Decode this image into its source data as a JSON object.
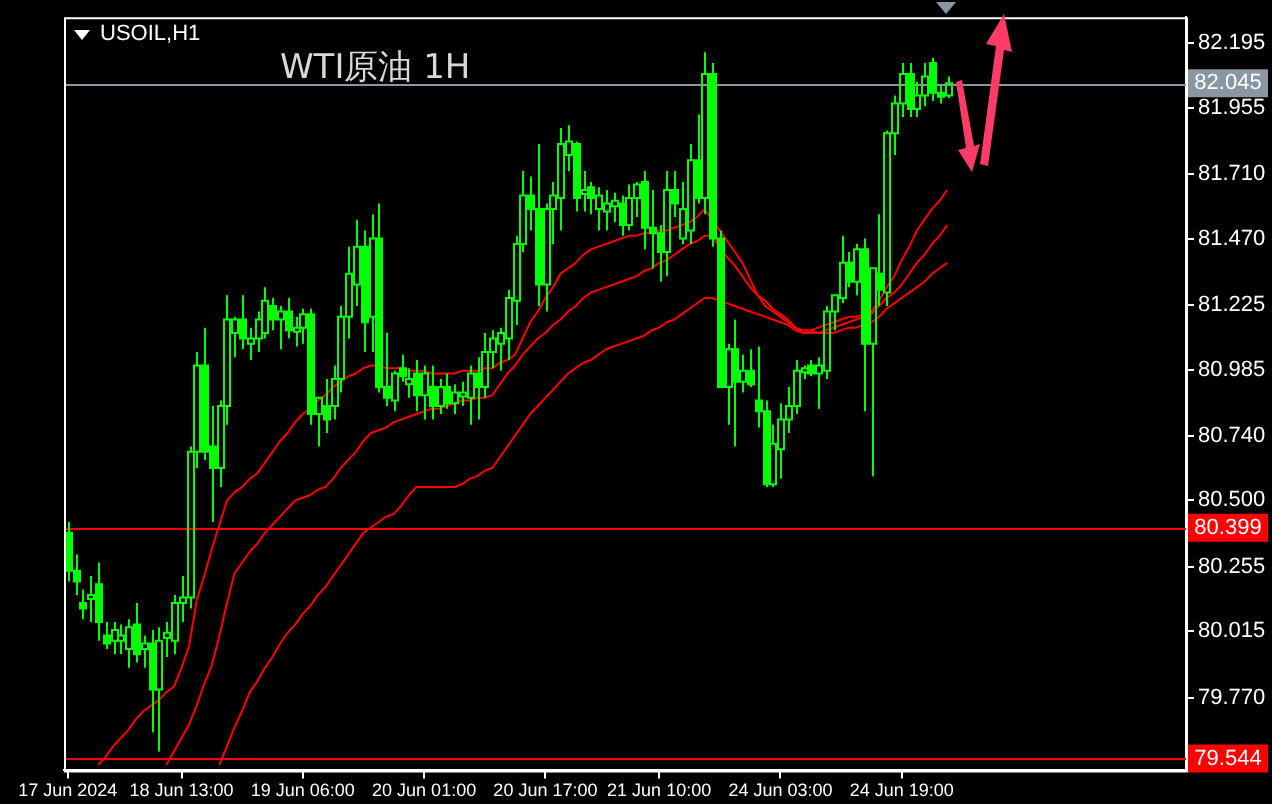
{
  "chart_data": {
    "type": "candlestick",
    "title": "WTI原油 1H",
    "subtitle": "USOIL,H1",
    "categories": [
      "17 Jun 2024",
      null,
      null,
      null,
      null,
      null,
      null,
      null,
      null,
      null,
      null,
      null,
      null,
      null,
      null,
      "18 Jun 13:00",
      null,
      null,
      null,
      null,
      null,
      null,
      null,
      null,
      null,
      null,
      null,
      null,
      null,
      null,
      null,
      "19 Jun 06:00",
      null,
      null,
      null,
      null,
      null,
      null,
      null,
      null,
      null,
      null,
      null,
      null,
      null,
      null,
      null,
      "20 Jun 01:00",
      null,
      null,
      null,
      null,
      null,
      null,
      null,
      null,
      null,
      null,
      null,
      null,
      null,
      null,
      null,
      "20 Jun 17:00",
      null,
      null,
      null,
      null,
      null,
      null,
      null,
      null,
      null,
      null,
      null,
      null,
      null,
      null,
      "21 Jun 10:00",
      null,
      null,
      null,
      null,
      null,
      null,
      null,
      null,
      null,
      null,
      null,
      null,
      null,
      null,
      null,
      "24 Jun 03:00",
      null,
      null,
      null,
      null,
      null,
      null,
      null,
      null,
      null,
      null,
      null,
      null,
      null,
      null,
      null,
      "24 Jun 19:00",
      null,
      null,
      null,
      null,
      null,
      null,
      null,
      null,
      null,
      null,
      null,
      null,
      null,
      null,
      null,
      null,
      null,
      null,
      null,
      null,
      null,
      null,
      null,
      null,
      null,
      null,
      null,
      null,
      null,
      null,
      null,
      null,
      null,
      null,
      null,
      null,
      null
    ],
    "series": [
      {
        "type": "candlestick",
        "color": "#00ff00",
        "ohlc": [
          [
            80.38,
            80.42,
            80.2,
            80.24
          ],
          [
            80.24,
            80.3,
            80.15,
            80.2
          ],
          [
            80.12,
            80.17,
            80.06,
            80.1
          ],
          [
            80.14,
            80.22,
            80.05,
            80.15
          ],
          [
            80.19,
            80.27,
            79.98,
            80.05
          ],
          [
            80.0,
            80.05,
            79.95,
            79.97
          ],
          [
            79.98,
            80.05,
            79.93,
            80.02
          ],
          [
            79.98,
            80.04,
            79.93,
            80.0
          ],
          [
            79.95,
            80.06,
            79.88,
            80.03
          ],
          [
            80.04,
            80.12,
            79.9,
            79.93
          ],
          [
            79.95,
            80.0,
            79.88,
            79.97
          ],
          [
            79.97,
            80.02,
            79.64,
            79.8
          ],
          [
            79.8,
            80.03,
            79.57,
            79.98
          ],
          [
            79.99,
            80.05,
            79.92,
            80.01
          ],
          [
            79.98,
            80.15,
            79.93,
            80.12
          ],
          [
            80.12,
            80.22,
            80.05,
            80.14
          ],
          [
            80.14,
            80.7,
            80.1,
            80.68
          ],
          [
            80.68,
            81.05,
            80.62,
            81.0
          ],
          [
            81.0,
            81.14,
            80.65,
            80.68
          ],
          [
            80.7,
            80.85,
            80.42,
            80.62
          ],
          [
            80.62,
            80.87,
            80.55,
            80.85
          ],
          [
            80.85,
            81.26,
            80.78,
            81.17
          ],
          [
            81.12,
            81.18,
            81.03,
            81.17
          ],
          [
            81.17,
            81.26,
            81.06,
            81.1
          ],
          [
            81.08,
            81.14,
            81.02,
            81.1
          ],
          [
            81.1,
            81.2,
            81.05,
            81.17
          ],
          [
            81.12,
            81.29,
            81.1,
            81.24
          ],
          [
            81.22,
            81.25,
            81.13,
            81.17
          ],
          [
            81.17,
            81.22,
            81.06,
            81.2
          ],
          [
            81.2,
            81.25,
            81.1,
            81.13
          ],
          [
            81.13,
            81.18,
            81.07,
            81.14
          ],
          [
            81.14,
            81.21,
            81.08,
            81.19
          ],
          [
            81.19,
            81.21,
            80.78,
            80.82
          ],
          [
            80.82,
            80.88,
            80.7,
            80.88
          ],
          [
            80.85,
            80.95,
            80.75,
            80.8
          ],
          [
            80.85,
            81.0,
            80.8,
            80.95
          ],
          [
            80.95,
            81.22,
            80.9,
            81.18
          ],
          [
            81.18,
            81.44,
            81.1,
            81.34
          ],
          [
            81.3,
            81.54,
            81.22,
            81.44
          ],
          [
            81.44,
            81.5,
            81.05,
            81.16
          ],
          [
            81.18,
            81.56,
            81.05,
            81.47
          ],
          [
            81.47,
            81.6,
            80.9,
            80.92
          ],
          [
            80.92,
            81.12,
            80.85,
            80.88
          ],
          [
            80.87,
            80.98,
            80.83,
            80.97
          ],
          [
            80.99,
            81.04,
            80.94,
            80.96
          ],
          [
            80.93,
            80.99,
            80.88,
            80.95
          ],
          [
            80.97,
            81.02,
            80.83,
            80.89
          ],
          [
            80.89,
            81.0,
            80.8,
            80.97
          ],
          [
            80.92,
            81.0,
            80.8,
            80.85
          ],
          [
            80.85,
            80.95,
            80.82,
            80.92
          ],
          [
            80.92,
            80.97,
            80.84,
            80.86
          ],
          [
            80.86,
            80.93,
            80.82,
            80.9
          ],
          [
            80.89,
            80.94,
            80.85,
            80.9
          ],
          [
            80.88,
            81.0,
            80.78,
            80.97
          ],
          [
            80.97,
            81.03,
            80.8,
            80.92
          ],
          [
            80.92,
            81.12,
            80.88,
            81.05
          ],
          [
            81.05,
            81.13,
            80.99,
            81.1
          ],
          [
            81.08,
            81.14,
            80.98,
            81.12
          ],
          [
            81.1,
            81.28,
            81.02,
            81.25
          ],
          [
            81.24,
            81.48,
            81.15,
            81.45
          ],
          [
            81.45,
            81.72,
            81.42,
            81.63
          ],
          [
            81.63,
            81.7,
            81.5,
            81.58
          ],
          [
            81.58,
            81.82,
            81.22,
            81.3
          ],
          [
            81.3,
            81.6,
            81.2,
            81.58
          ],
          [
            81.58,
            81.68,
            81.45,
            81.63
          ],
          [
            81.62,
            81.88,
            81.5,
            81.82
          ],
          [
            81.78,
            81.89,
            81.72,
            81.83
          ],
          [
            81.82,
            81.83,
            81.57,
            81.62
          ],
          [
            81.64,
            81.72,
            81.57,
            81.65
          ],
          [
            81.66,
            81.68,
            81.56,
            81.62
          ],
          [
            81.58,
            81.66,
            81.5,
            81.63
          ],
          [
            81.57,
            81.65,
            81.5,
            81.6
          ],
          [
            81.59,
            81.64,
            81.53,
            81.61
          ],
          [
            81.6,
            81.63,
            81.48,
            81.52
          ],
          [
            81.52,
            81.67,
            81.5,
            81.62
          ],
          [
            81.62,
            81.68,
            81.55,
            81.67
          ],
          [
            81.68,
            81.72,
            81.43,
            81.51
          ],
          [
            81.51,
            81.65,
            81.36,
            81.49
          ],
          [
            81.49,
            81.52,
            81.31,
            81.42
          ],
          [
            81.42,
            81.72,
            81.33,
            81.65
          ],
          [
            81.65,
            81.72,
            81.55,
            81.6
          ],
          [
            81.47,
            81.68,
            81.45,
            81.58
          ],
          [
            81.5,
            81.82,
            81.45,
            81.76
          ],
          [
            81.76,
            81.93,
            81.6,
            81.62
          ],
          [
            81.62,
            82.16,
            81.56,
            82.08
          ],
          [
            82.08,
            82.12,
            81.44,
            81.47
          ],
          [
            81.47,
            81.5,
            80.92,
            80.92
          ],
          [
            80.92,
            81.08,
            80.78,
            81.06
          ],
          [
            81.06,
            81.17,
            80.7,
            80.94
          ],
          [
            80.94,
            81.04,
            80.9,
            80.98
          ],
          [
            80.98,
            81.06,
            80.92,
            80.93
          ],
          [
            80.87,
            81.07,
            80.77,
            80.83
          ],
          [
            80.83,
            80.87,
            80.55,
            80.56
          ],
          [
            80.56,
            80.78,
            80.55,
            80.71
          ],
          [
            80.69,
            80.86,
            80.58,
            80.8
          ],
          [
            80.8,
            80.92,
            80.75,
            80.85
          ],
          [
            80.85,
            81.02,
            80.82,
            80.98
          ],
          [
            80.98,
            81.0,
            80.95,
            80.99
          ],
          [
            81.0,
            81.02,
            80.96,
            80.97
          ],
          [
            80.97,
            81.03,
            80.84,
            81.0
          ],
          [
            80.98,
            81.22,
            80.95,
            81.2
          ],
          [
            81.2,
            81.26,
            81.13,
            81.26
          ],
          [
            81.25,
            81.48,
            81.23,
            81.38
          ],
          [
            81.38,
            81.42,
            81.29,
            81.31
          ],
          [
            81.31,
            81.45,
            81.26,
            81.43
          ],
          [
            81.43,
            81.47,
            80.83,
            81.08
          ],
          [
            81.08,
            81.36,
            80.59,
            81.36
          ],
          [
            81.34,
            81.56,
            81.22,
            81.28
          ],
          [
            81.27,
            81.87,
            81.22,
            81.86
          ],
          [
            81.86,
            82.0,
            81.78,
            81.97
          ],
          [
            81.97,
            82.12,
            81.92,
            82.08
          ],
          [
            82.08,
            82.12,
            81.92,
            81.95
          ],
          [
            81.95,
            82.05,
            81.92,
            82.0
          ],
          [
            82.0,
            82.12,
            81.96,
            82.07
          ],
          [
            82.12,
            82.14,
            81.98,
            82.01
          ],
          [
            82.01,
            82.04,
            81.97,
            82.0
          ],
          [
            82.0,
            82.07,
            81.99,
            82.045
          ],
          null,
          null,
          null,
          null,
          null,
          null,
          null,
          null,
          null,
          null,
          null,
          null,
          null,
          null,
          null,
          null,
          null,
          null,
          null,
          null,
          null,
          null,
          null,
          null,
          null,
          null,
          null,
          null,
          null,
          null,
          null
        ]
      },
      {
        "type": "line",
        "color": "#ff0000",
        "values": [
          null,
          null,
          null,
          null,
          79.52,
          79.55,
          79.59,
          79.62,
          79.65,
          79.69,
          79.72,
          79.74,
          79.76,
          79.79,
          79.81,
          79.88,
          79.96,
          80.13,
          80.22,
          80.32,
          80.41,
          80.5,
          80.53,
          80.55,
          80.58,
          80.6,
          80.64,
          80.68,
          80.72,
          80.75,
          80.79,
          80.82,
          80.84,
          80.87,
          80.89,
          80.92,
          80.94,
          80.96,
          80.97,
          80.99,
          81.0,
          81.0,
          80.99,
          80.99,
          80.99,
          80.98,
          80.98,
          80.98,
          80.97,
          80.97,
          80.97,
          80.97,
          80.98,
          80.98,
          80.98,
          80.99,
          80.99,
          81.01,
          81.02,
          81.04,
          81.1,
          81.16,
          81.2,
          81.25,
          81.29,
          81.34,
          81.36,
          81.38,
          81.41,
          81.43,
          81.44,
          81.45,
          81.46,
          81.47,
          81.48,
          81.48,
          81.49,
          81.49,
          81.5,
          81.5,
          81.51,
          81.52,
          81.53,
          81.55,
          81.58,
          81.54,
          81.5,
          81.46,
          81.42,
          81.38,
          81.32,
          81.26,
          81.24,
          81.21,
          81.19,
          81.17,
          81.14,
          81.12,
          81.13,
          81.14,
          81.15,
          81.16,
          81.17,
          81.18,
          81.18,
          81.19,
          81.2,
          81.24,
          81.29,
          81.33,
          81.39,
          81.44,
          81.5,
          81.54,
          81.58,
          81.61,
          81.65,
          null,
          null,
          null,
          null,
          null,
          null,
          null,
          null,
          null,
          null,
          null,
          null,
          null,
          null,
          null,
          null,
          null,
          null,
          null,
          null,
          null,
          null,
          null,
          null,
          null,
          null,
          null,
          null,
          null,
          null,
          null
        ]
      },
      {
        "type": "line",
        "color": "#ff0000",
        "values": [
          null,
          null,
          null,
          null,
          null,
          null,
          null,
          null,
          null,
          null,
          null,
          null,
          null,
          79.52,
          79.57,
          79.62,
          79.67,
          79.74,
          79.82,
          79.89,
          80.0,
          80.12,
          80.23,
          80.27,
          80.31,
          80.34,
          80.38,
          80.41,
          80.44,
          80.47,
          80.5,
          80.51,
          80.52,
          80.54,
          80.55,
          80.58,
          80.62,
          80.65,
          80.68,
          80.72,
          80.75,
          80.76,
          80.77,
          80.79,
          80.8,
          80.81,
          80.82,
          80.83,
          80.84,
          80.84,
          80.85,
          80.86,
          80.87,
          80.87,
          80.88,
          80.88,
          80.89,
          80.93,
          80.97,
          81.0,
          81.04,
          81.07,
          81.1,
          81.12,
          81.15,
          81.17,
          81.2,
          81.22,
          81.25,
          81.27,
          81.28,
          81.29,
          81.3,
          81.31,
          81.32,
          81.33,
          81.35,
          81.36,
          81.38,
          81.39,
          81.41,
          81.43,
          81.45,
          81.46,
          81.48,
          81.48,
          81.44,
          81.4,
          81.37,
          81.33,
          81.29,
          81.26,
          81.22,
          81.2,
          81.18,
          81.16,
          81.14,
          81.13,
          81.13,
          81.12,
          81.13,
          81.14,
          81.15,
          81.16,
          81.17,
          81.18,
          81.19,
          81.22,
          81.25,
          81.27,
          81.3,
          81.34,
          81.38,
          81.41,
          81.45,
          81.48,
          81.52,
          null,
          null,
          null,
          null,
          null,
          null,
          null,
          null,
          null,
          null,
          null,
          null,
          null,
          null,
          null,
          null,
          null,
          null,
          null,
          null,
          null,
          null,
          null,
          null,
          null,
          null,
          null,
          null,
          null,
          null,
          null
        ]
      },
      {
        "type": "line",
        "color": "#ff0000",
        "values": [
          null,
          null,
          null,
          null,
          null,
          null,
          null,
          null,
          null,
          null,
          null,
          null,
          null,
          null,
          null,
          null,
          null,
          null,
          null,
          null,
          79.52,
          79.59,
          79.66,
          79.72,
          79.79,
          79.83,
          79.88,
          79.92,
          79.97,
          80.01,
          80.04,
          80.08,
          80.11,
          80.15,
          80.18,
          80.22,
          80.26,
          80.3,
          80.34,
          80.38,
          80.4,
          80.42,
          80.44,
          80.45,
          80.48,
          80.52,
          80.55,
          80.55,
          80.55,
          80.55,
          80.55,
          80.55,
          80.56,
          80.58,
          80.59,
          80.61,
          80.62,
          80.66,
          80.7,
          80.74,
          80.78,
          80.82,
          80.85,
          80.88,
          80.91,
          80.94,
          80.97,
          80.99,
          81.01,
          81.02,
          81.04,
          81.06,
          81.07,
          81.08,
          81.09,
          81.1,
          81.11,
          81.13,
          81.14,
          81.16,
          81.17,
          81.19,
          81.21,
          81.23,
          81.25,
          81.25,
          81.24,
          81.23,
          81.22,
          81.21,
          81.2,
          81.19,
          81.18,
          81.17,
          81.16,
          81.15,
          81.13,
          81.12,
          81.12,
          81.12,
          81.12,
          81.12,
          81.13,
          81.14,
          81.14,
          81.15,
          81.16,
          81.18,
          81.21,
          81.23,
          81.25,
          81.27,
          81.29,
          81.31,
          81.34,
          81.36,
          81.38,
          null,
          null,
          null,
          null,
          null,
          null,
          null,
          null,
          null,
          null,
          null,
          null,
          null,
          null,
          null,
          null,
          null,
          null,
          null,
          null,
          null,
          null,
          null,
          null,
          null,
          null,
          null,
          null,
          null,
          null,
          null
        ]
      }
    ],
    "marker": "none",
    "ylim": [
      79.5,
      82.29
    ],
    "yticks": [
      82.195,
      81.955,
      {
        "value": 81.71,
        "label": "81.710"
      },
      {
        "value": 81.47,
        "label": "81.470"
      },
      81.225,
      80.985,
      {
        "value": 80.74,
        "label": "80.740"
      },
      {
        "value": 80.5,
        "label": "80.500"
      },
      80.255,
      80.015,
      {
        "value": 79.77,
        "label": "79.770"
      }
    ],
    "ref_lines": [
      {
        "axis": "y",
        "value": 82.045,
        "label": "82.045",
        "color": "#8a96a2"
      },
      {
        "axis": "y",
        "value": 80.399,
        "label": "80.399",
        "color": "#ff0000"
      },
      {
        "axis": "y",
        "value": 79.544,
        "label": "79.544",
        "color": "#ff0000"
      }
    ]
  }
}
